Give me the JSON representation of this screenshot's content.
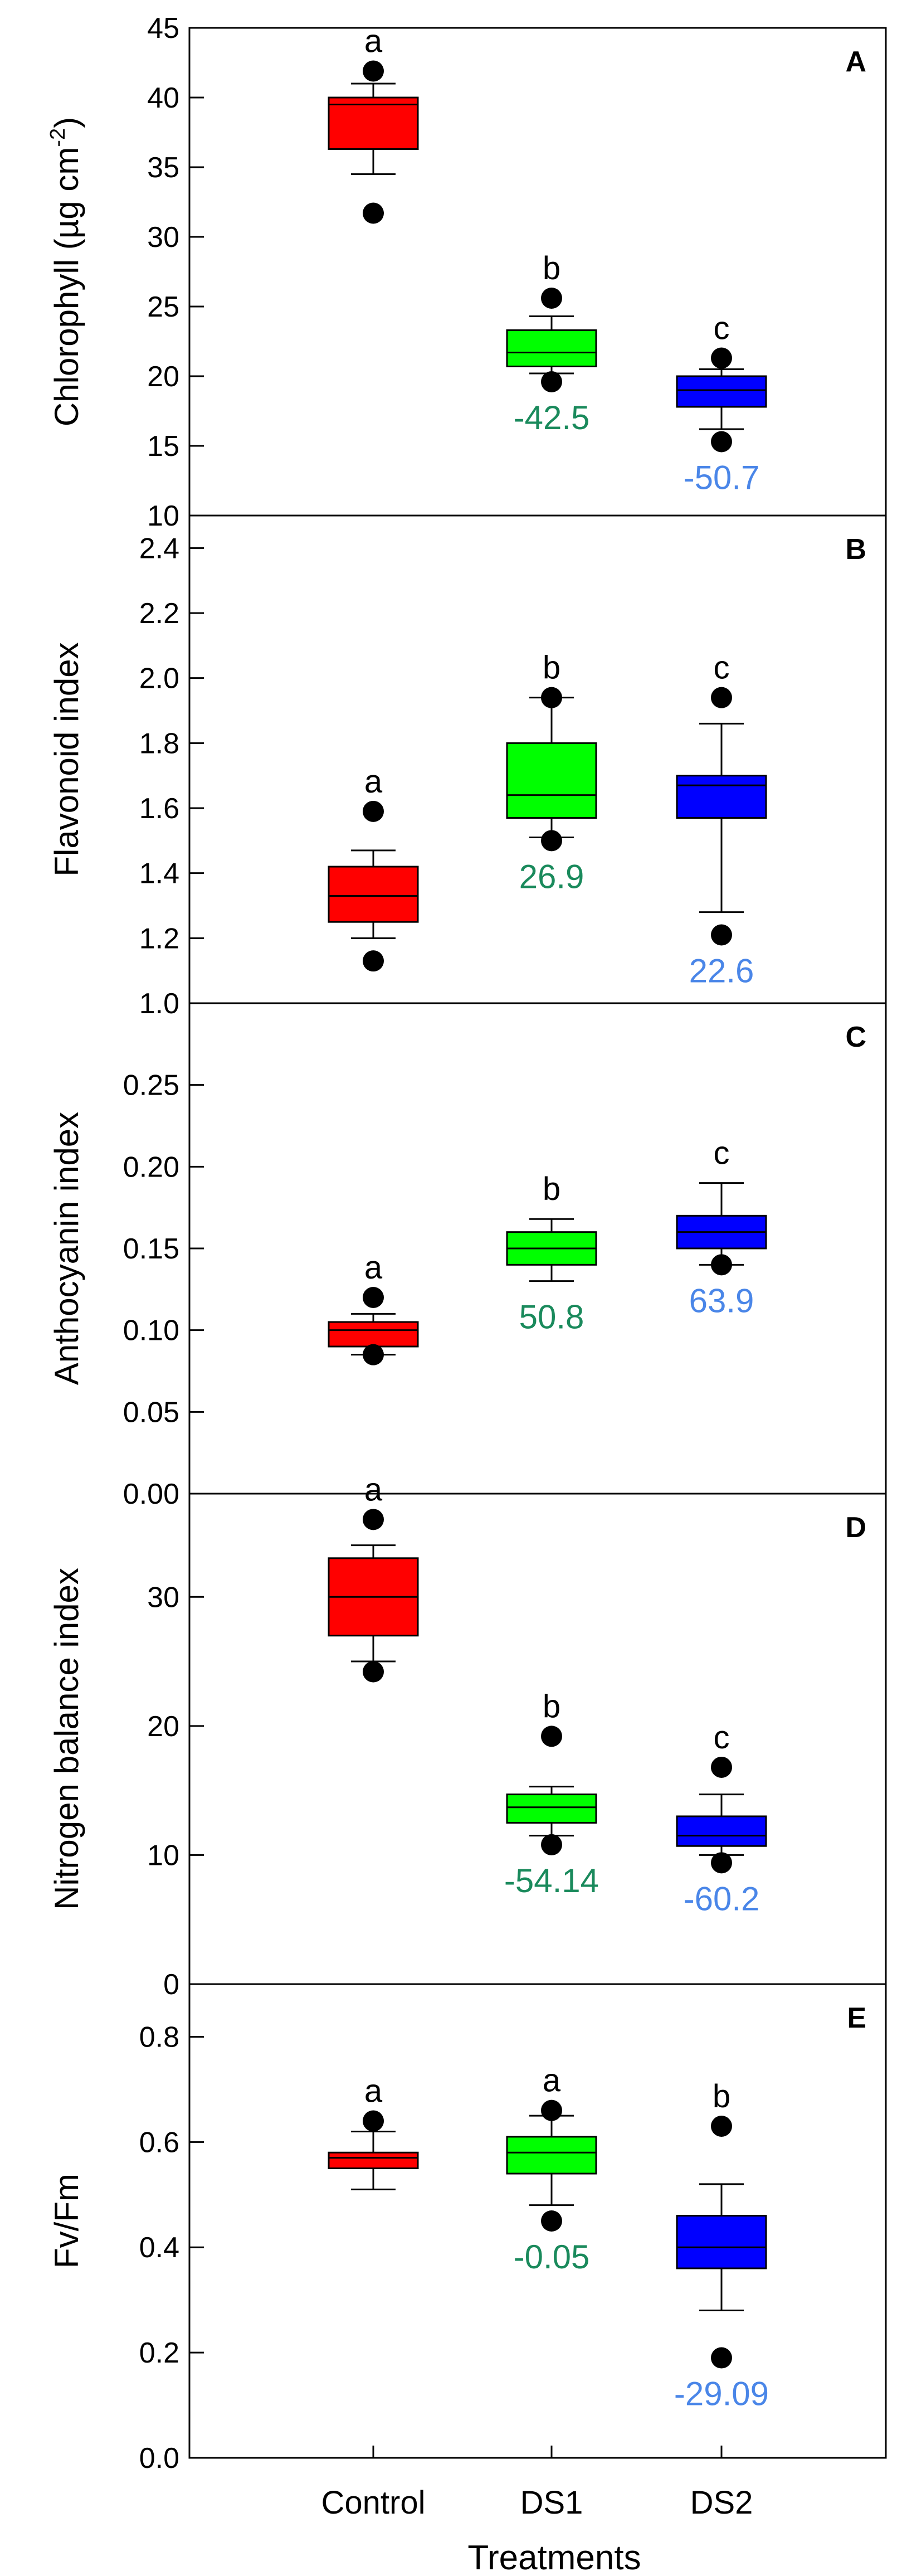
{
  "chart_data": {
    "type": "box",
    "categories": [
      "Control",
      "DS1",
      "DS2"
    ],
    "xlabel": "Treatments",
    "colors": {
      "Control": "#ff0000",
      "DS1": "#00ff00",
      "DS2": "#0000ff",
      "label_DS1": "#1a8a5c",
      "label_DS2": "#4a86e8"
    },
    "panels": [
      {
        "letter": "A",
        "ylabel_parts": [
          "Chlorophyll (µg cm",
          "-2",
          ")"
        ],
        "ylim": [
          10,
          45
        ],
        "ticks": [
          "10",
          "15",
          "20",
          "25",
          "30",
          "35",
          "40",
          "45"
        ],
        "boxes": [
          {
            "cat": "Control",
            "q1": 36.3,
            "median": 39.5,
            "q3": 40.0,
            "wlo": 34.5,
            "whi": 41.0,
            "out_lo": 31.7,
            "out_hi": 41.9,
            "sig": "a",
            "change": null
          },
          {
            "cat": "DS1",
            "q1": 20.7,
            "median": 21.7,
            "q3": 23.3,
            "wlo": 20.2,
            "whi": 24.3,
            "out_lo": 19.6,
            "out_hi": 25.6,
            "sig": "b",
            "change": "-42.5"
          },
          {
            "cat": "DS2",
            "q1": 17.8,
            "median": 19.0,
            "q3": 20.0,
            "wlo": 16.2,
            "whi": 20.5,
            "out_lo": 15.3,
            "out_hi": 21.3,
            "sig": "c",
            "change": "-50.7"
          }
        ]
      },
      {
        "letter": "B",
        "ylabel": "Flavonoid index",
        "ylim": [
          1.0,
          2.5
        ],
        "ticks": [
          "1.0",
          "1.2",
          "1.4",
          "1.6",
          "1.8",
          "2.0",
          "2.2",
          "2.4"
        ],
        "boxes": [
          {
            "cat": "Control",
            "q1": 1.25,
            "median": 1.33,
            "q3": 1.42,
            "wlo": 1.2,
            "whi": 1.47,
            "out_lo": 1.13,
            "out_hi": 1.59,
            "sig": "a",
            "change": null
          },
          {
            "cat": "DS1",
            "q1": 1.57,
            "median": 1.64,
            "q3": 1.8,
            "wlo": 1.51,
            "whi": 1.94,
            "out_lo": 1.5,
            "out_hi": 1.94,
            "sig": "b",
            "change": "26.9"
          },
          {
            "cat": "DS2",
            "q1": 1.57,
            "median": 1.67,
            "q3": 1.7,
            "wlo": 1.28,
            "whi": 1.86,
            "out_lo": 1.21,
            "out_hi": 1.94,
            "sig": "c",
            "change": "22.6"
          }
        ]
      },
      {
        "letter": "C",
        "ylabel": "Anthocyanin index",
        "ylim": [
          0.0,
          0.3
        ],
        "ticks": [
          "0.00",
          "0.05",
          "0.10",
          "0.15",
          "0.20",
          "0.25"
        ],
        "boxes": [
          {
            "cat": "Control",
            "q1": 0.09,
            "median": 0.1,
            "q3": 0.105,
            "wlo": 0.085,
            "whi": 0.11,
            "out_lo": 0.085,
            "out_hi": 0.12,
            "sig": "a",
            "change": null
          },
          {
            "cat": "DS1",
            "q1": 0.14,
            "median": 0.15,
            "q3": 0.16,
            "wlo": 0.13,
            "whi": 0.168,
            "out_lo": null,
            "out_hi": null,
            "sig": "b",
            "change": "50.8"
          },
          {
            "cat": "DS2",
            "q1": 0.15,
            "median": 0.16,
            "q3": 0.17,
            "wlo": 0.14,
            "whi": 0.19,
            "out_lo": 0.14,
            "out_hi": null,
            "sig": "c",
            "change": "63.9"
          }
        ]
      },
      {
        "letter": "D",
        "ylabel": "Nitrogen balance index",
        "ylim": [
          0,
          38
        ],
        "ticks": [
          "0",
          "10",
          "20",
          "30"
        ],
        "boxes": [
          {
            "cat": "Control",
            "q1": 27.0,
            "median": 30.0,
            "q3": 33.0,
            "wlo": 25.0,
            "whi": 34.0,
            "out_lo": 24.2,
            "out_hi": 36.0,
            "sig": "a",
            "change": null
          },
          {
            "cat": "DS1",
            "q1": 12.5,
            "median": 13.7,
            "q3": 14.7,
            "wlo": 11.5,
            "whi": 15.3,
            "out_lo": 10.8,
            "out_hi": 19.2,
            "sig": "b",
            "change": "-54.14"
          },
          {
            "cat": "DS2",
            "q1": 10.7,
            "median": 11.5,
            "q3": 13.0,
            "wlo": 10.0,
            "whi": 14.7,
            "out_lo": 9.4,
            "out_hi": 16.8,
            "sig": "c",
            "change": "-60.2"
          }
        ]
      },
      {
        "letter": "E",
        "ylabel": "Fv/Fm",
        "ylim": [
          0.0,
          0.9
        ],
        "ticks": [
          "0.0",
          "0.2",
          "0.4",
          "0.6",
          "0.8"
        ],
        "boxes": [
          {
            "cat": "Control",
            "q1": 0.55,
            "median": 0.57,
            "q3": 0.58,
            "wlo": 0.51,
            "whi": 0.62,
            "out_lo": null,
            "out_hi": 0.64,
            "sig": "a",
            "change": null
          },
          {
            "cat": "DS1",
            "q1": 0.54,
            "median": 0.58,
            "q3": 0.61,
            "wlo": 0.48,
            "whi": 0.65,
            "out_lo": 0.45,
            "out_hi": 0.66,
            "sig": "a",
            "change": "-0.05"
          },
          {
            "cat": "DS2",
            "q1": 0.36,
            "median": 0.4,
            "q3": 0.46,
            "wlo": 0.28,
            "whi": 0.52,
            "out_lo": 0.19,
            "out_hi": 0.63,
            "sig": "b",
            "change": "-29.09"
          }
        ]
      }
    ]
  }
}
